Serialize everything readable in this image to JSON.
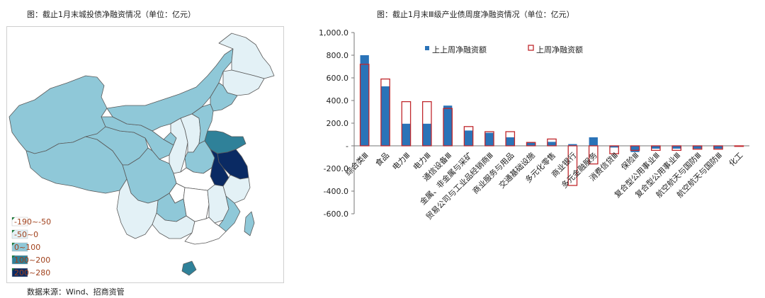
{
  "map": {
    "title": "图：截止1月末城投债净融资情况（单位：亿元）",
    "legend": [
      {
        "label": "-190~-50",
        "color": "#ffffff"
      },
      {
        "label": "-50~0",
        "color": "#e3f1f6"
      },
      {
        "label": "0~100",
        "color": "#8fc8d8"
      },
      {
        "label": "100~200",
        "color": "#2f8199"
      },
      {
        "label": "200~280",
        "color": "#0a2a63"
      }
    ]
  },
  "source": "数据来源：Wind、招商资管",
  "chart_data": {
    "type": "bar",
    "title": "图：截止1月末Ⅲ级产业债周度净融资情况（单位：亿元）",
    "ylim": [
      -600,
      1000
    ],
    "yticks": [
      "1,000.0",
      "800.0",
      "600.0",
      "400.0",
      "200.0",
      "-",
      "-200.0",
      "-400.0",
      "-600.0"
    ],
    "grid": false,
    "legend_position": "top",
    "categories": [
      "综合类Ⅲ",
      "食品",
      "电力Ⅲ",
      "电力Ⅲ",
      "通信设备Ⅲ",
      "金属、非金属与采矿",
      "贸易公司与工业品经销商Ⅲ",
      "商业服务与用品",
      "交通基础设施",
      "多元化零售",
      "商业银行",
      "多元金融服务",
      "消费信贷Ⅲ",
      "保险Ⅲ",
      "复合型公用事业Ⅲ",
      "复合型公用事业Ⅲ",
      "航空航天与国防Ⅲ",
      "航空航天与国防Ⅲ",
      "化工"
    ],
    "series": [
      {
        "name": "上上周净融资额",
        "color": "#2a73b8",
        "values": [
          800,
          525,
          195,
          195,
          355,
          135,
          115,
          75,
          30,
          35,
          15,
          75,
          -15,
          -55,
          -25,
          -25,
          -25,
          -25,
          -5
        ]
      },
      {
        "name": "上周净融资额",
        "color": "#c0282d",
        "values": [
          720,
          590,
          390,
          390,
          330,
          170,
          125,
          125,
          30,
          60,
          -350,
          -160,
          -70,
          -40,
          -40,
          -40,
          -30,
          -30,
          -5
        ]
      }
    ]
  }
}
